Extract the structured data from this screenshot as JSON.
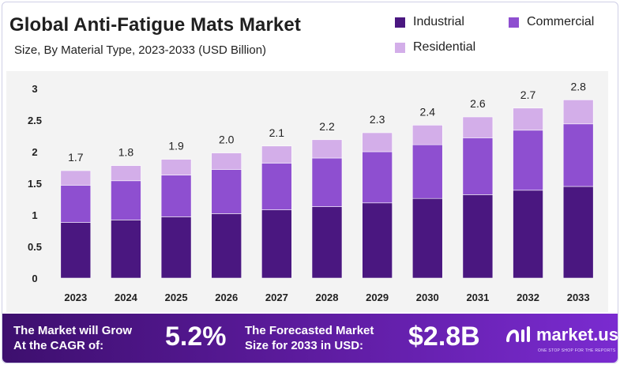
{
  "chart_data": {
    "type": "bar",
    "stacked": true,
    "title": "Global Anti-Fatigue Mats Market",
    "subtitle": "Size, By Material Type, 2023-2033 (USD Billion)",
    "categories": [
      "2023",
      "2024",
      "2025",
      "2026",
      "2027",
      "2028",
      "2029",
      "2030",
      "2031",
      "2032",
      "2033"
    ],
    "series": [
      {
        "name": "Industrial",
        "color": "#4a1780",
        "values": [
          0.88,
          0.92,
          0.97,
          1.02,
          1.08,
          1.13,
          1.19,
          1.26,
          1.32,
          1.39,
          1.45
        ]
      },
      {
        "name": "Commercial",
        "color": "#8e4fd0",
        "values": [
          0.59,
          0.62,
          0.66,
          0.7,
          0.74,
          0.77,
          0.81,
          0.85,
          0.9,
          0.95,
          0.99
        ]
      },
      {
        "name": "Residential",
        "color": "#d3aee9",
        "values": [
          0.23,
          0.24,
          0.25,
          0.26,
          0.27,
          0.29,
          0.3,
          0.31,
          0.33,
          0.35,
          0.38
        ]
      }
    ],
    "totals": [
      "1.7",
      "1.8",
      "1.9",
      "2.0",
      "2.1",
      "2.2",
      "2.3",
      "2.4",
      "2.6",
      "2.7",
      "2.8"
    ],
    "yticks": [
      "0",
      "0.5",
      "1",
      "1.5",
      "2",
      "2.5",
      "3"
    ],
    "ylim": [
      0,
      3
    ],
    "xlabel": "",
    "ylabel": "",
    "legend_position": "top-right"
  },
  "footer": {
    "cagr_label_line1": "The Market will Grow",
    "cagr_label_line2": "At the CAGR of:",
    "cagr_value": "5.2%",
    "forecast_label_line1": "The Forecasted Market",
    "forecast_label_line2": "Size for 2033 in USD:",
    "forecast_value": "$2.8B",
    "brand_name": "market.us",
    "brand_tagline": "ONE STOP SHOP FOR THE REPORTS"
  }
}
